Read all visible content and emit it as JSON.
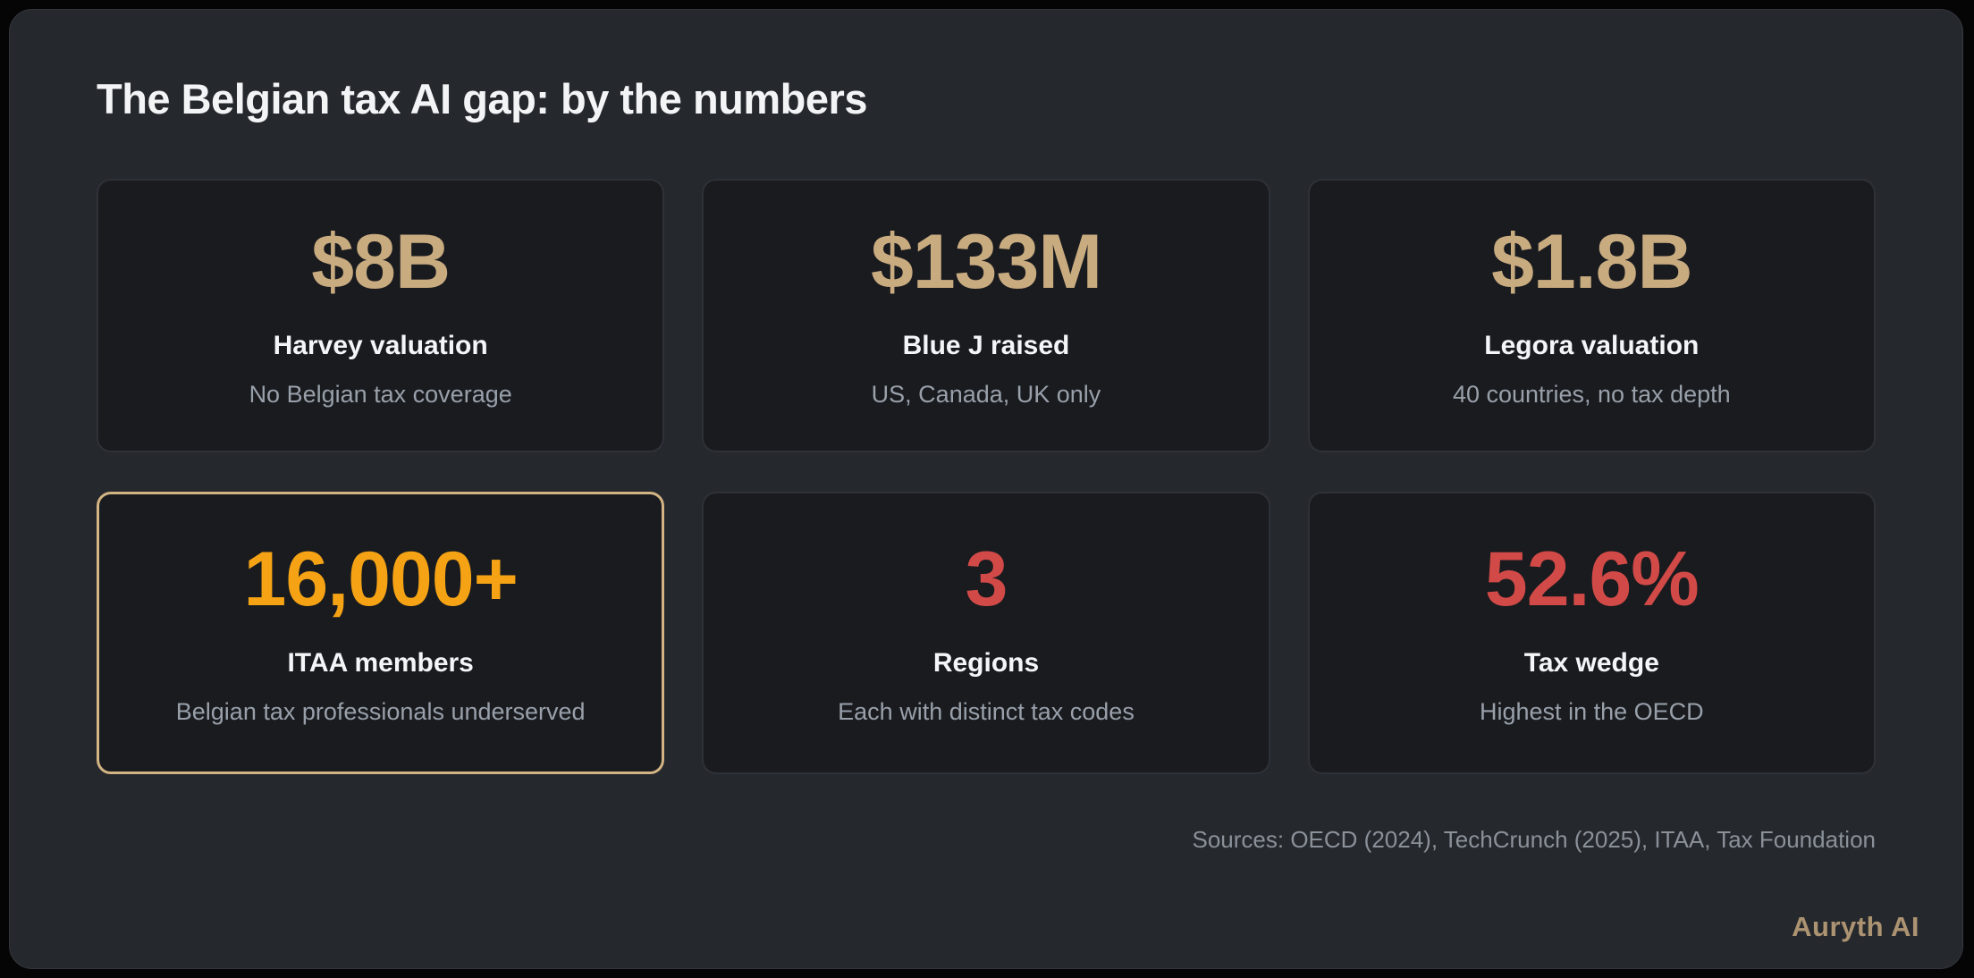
{
  "page": {
    "title": "The Belgian tax AI gap: by the numbers",
    "sources": "Sources: OECD (2024), TechCrunch (2025), ITAA, Tax Foundation",
    "brand": "Auryth AI"
  },
  "colors": {
    "page_background": "#050505",
    "panel_background": "#25282d",
    "card_background": "#191b1f",
    "card_border": "#2e3137",
    "highlight_border": "#d3b483",
    "accent_tan": "#c9ab80",
    "accent_orange": "#f5a315",
    "accent_red": "#d24a47",
    "heading_text": "#f3f4f6",
    "sub_text": "#99a0aa",
    "sources_text": "#8b9199",
    "brand_text": "#ac9371"
  },
  "cards": [
    {
      "value": "$8B",
      "label": "Harvey valuation",
      "sub": "No Belgian tax coverage",
      "value_color": "#c9ab80",
      "highlighted": false
    },
    {
      "value": "$133M",
      "label": "Blue J raised",
      "sub": "US, Canada, UK only",
      "value_color": "#c9ab80",
      "highlighted": false
    },
    {
      "value": "$1.8B",
      "label": "Legora valuation",
      "sub": "40 countries, no tax depth",
      "value_color": "#c9ab80",
      "highlighted": false
    },
    {
      "value": "16,000+",
      "label": "ITAA members",
      "sub": "Belgian tax professionals underserved",
      "value_color": "#f5a315",
      "highlighted": true
    },
    {
      "value": "3",
      "label": "Regions",
      "sub": "Each with distinct tax codes",
      "value_color": "#d24a47",
      "highlighted": false
    },
    {
      "value": "52.6%",
      "label": "Tax wedge",
      "sub": "Highest in the OECD",
      "value_color": "#d24a47",
      "highlighted": false
    }
  ],
  "chart_data": {
    "type": "table",
    "title": "The Belgian tax AI gap: by the numbers",
    "columns": [
      "value",
      "label",
      "description"
    ],
    "rows": [
      [
        "$8B",
        "Harvey valuation",
        "No Belgian tax coverage"
      ],
      [
        "$133M",
        "Blue J raised",
        "US, Canada, UK only"
      ],
      [
        "$1.8B",
        "Legora valuation",
        "40 countries, no tax depth"
      ],
      [
        "16,000+",
        "ITAA members",
        "Belgian tax professionals underserved"
      ],
      [
        "3",
        "Regions",
        "Each with distinct tax codes"
      ],
      [
        "52.6%",
        "Tax wedge",
        "Highest in the OECD"
      ]
    ],
    "notes": "Sources: OECD (2024), TechCrunch (2025), ITAA, Tax Foundation",
    "layout": "2 rows x 3 columns of stat cards; card 'ITAA members' highlighted with gold border"
  }
}
